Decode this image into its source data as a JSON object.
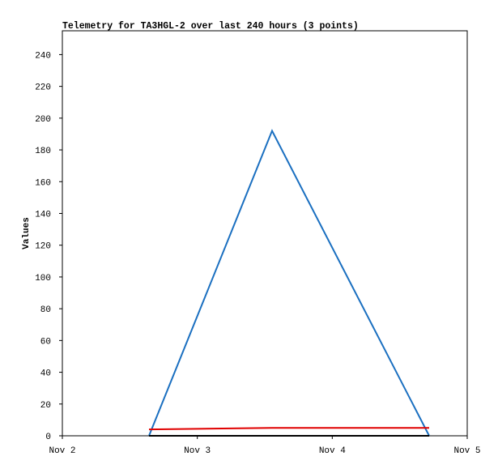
{
  "chart_data": {
    "type": "line",
    "title": "Telemetry for TA3HGL-2 over last 240 hours (3 points)",
    "y_label": "Values",
    "x": [
      0.642,
      1.554,
      2.718
    ],
    "series": [
      {
        "color": "#1a6fc0",
        "values": [
          0,
          192,
          0
        ]
      },
      {
        "color": "#e00000",
        "values": [
          4,
          5,
          5
        ]
      },
      {
        "color": "#000000",
        "values": [
          0,
          0,
          0
        ]
      }
    ],
    "xlim": [
      0,
      3
    ],
    "xticks": [
      {
        "value": 0,
        "label": "Nov 2"
      },
      {
        "value": 1,
        "label": "Nov 3"
      },
      {
        "value": 2,
        "label": "Nov 4"
      },
      {
        "value": 3,
        "label": "Nov 5"
      }
    ],
    "ylim": [
      0,
      255
    ],
    "yticks": [
      0,
      20,
      40,
      60,
      80,
      100,
      120,
      140,
      160,
      180,
      200,
      220,
      240
    ]
  }
}
